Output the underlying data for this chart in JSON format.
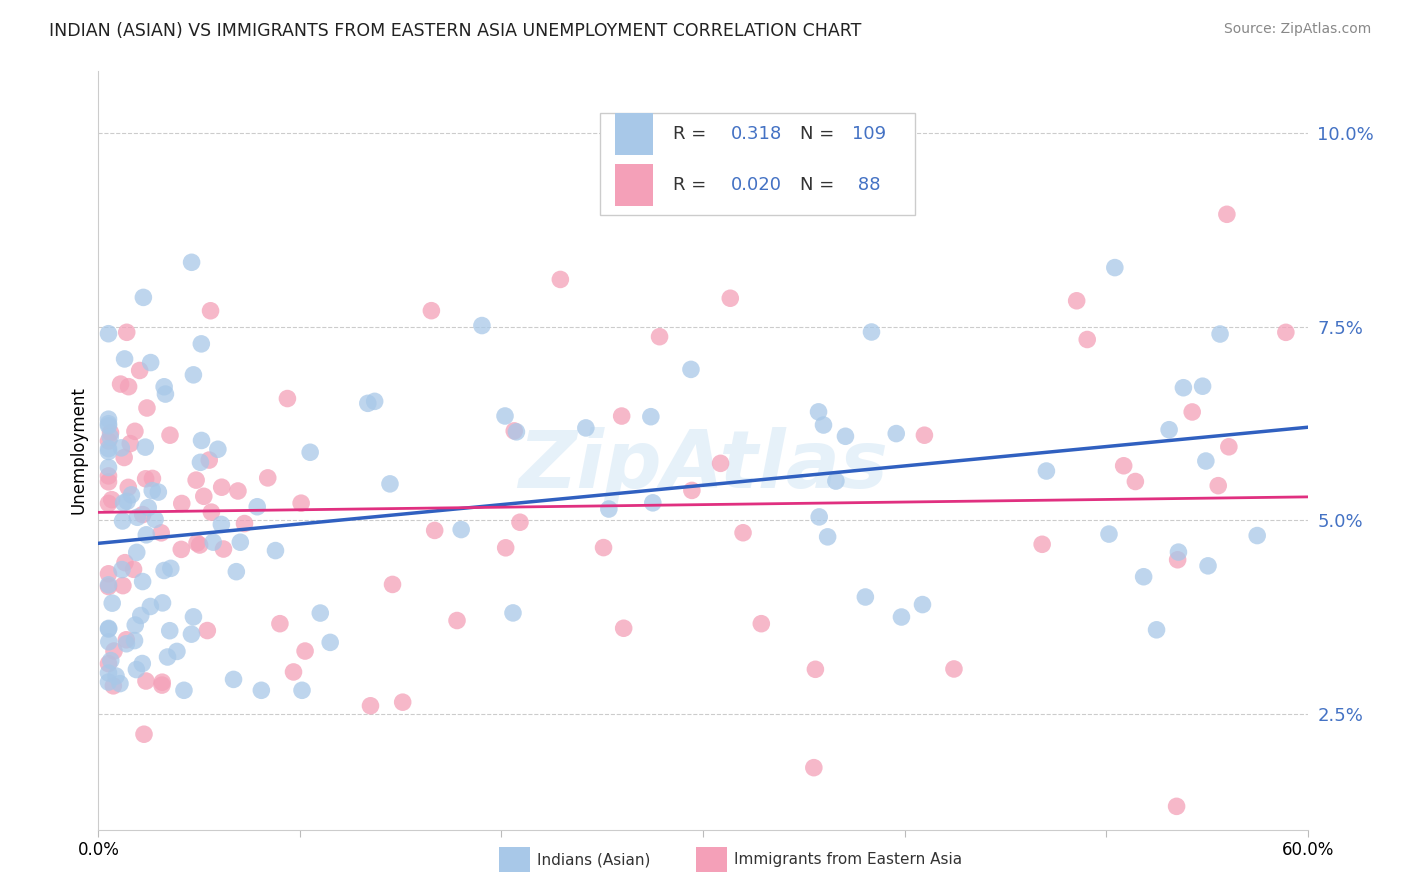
{
  "title": "INDIAN (ASIAN) VS IMMIGRANTS FROM EASTERN ASIA UNEMPLOYMENT CORRELATION CHART",
  "source": "Source: ZipAtlas.com",
  "ylabel": "Unemployment",
  "color_blue": "#a8c8e8",
  "color_pink": "#f4a0b8",
  "line_blue": "#3060c0",
  "line_pink": "#e03080",
  "tick_color": "#4472c4",
  "watermark": "ZipAtlas",
  "xlim": [
    0.0,
    0.6
  ],
  "ylim": [
    0.01,
    0.108
  ],
  "yticks": [
    0.025,
    0.05,
    0.075,
    0.1
  ],
  "ytick_labels": [
    "2.5%",
    "5.0%",
    "7.5%",
    "10.0%"
  ],
  "blue_line_start": 0.047,
  "blue_line_end": 0.062,
  "pink_line_start": 0.051,
  "pink_line_end": 0.053,
  "seed1": 12,
  "seed2": 77,
  "n1": 109,
  "n2": 88
}
